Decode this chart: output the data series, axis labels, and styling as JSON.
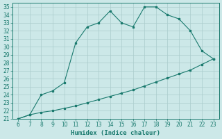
{
  "x": [
    6,
    7,
    8,
    9,
    10,
    11,
    12,
    13,
    14,
    15,
    16,
    17,
    18,
    19,
    20,
    21,
    22,
    23
  ],
  "y_main": [
    21,
    21.5,
    24,
    24.5,
    25.5,
    30.5,
    32.5,
    33,
    34.5,
    33,
    32.5,
    35,
    35,
    34,
    33.5,
    32,
    29.5,
    28.5
  ],
  "y_line2": [
    21,
    21.5,
    21.8,
    22.0,
    22.3,
    22.6,
    23.0,
    23.4,
    23.8,
    24.2,
    24.6,
    25.1,
    25.6,
    26.1,
    26.6,
    27.1,
    27.8,
    28.5
  ],
  "xlim": [
    5.5,
    23.5
  ],
  "ylim": [
    21,
    35.5
  ],
  "xticks": [
    6,
    7,
    8,
    9,
    10,
    11,
    12,
    13,
    14,
    15,
    16,
    17,
    18,
    19,
    20,
    21,
    22,
    23
  ],
  "yticks": [
    21,
    22,
    23,
    24,
    25,
    26,
    27,
    28,
    29,
    30,
    31,
    32,
    33,
    34,
    35
  ],
  "xlabel": "Humidex (Indice chaleur)",
  "line_color": "#1a7a6e",
  "bg_color": "#cce8e8",
  "grid_color": "#aacccc",
  "tick_fontsize": 5.5,
  "xlabel_fontsize": 6.5
}
